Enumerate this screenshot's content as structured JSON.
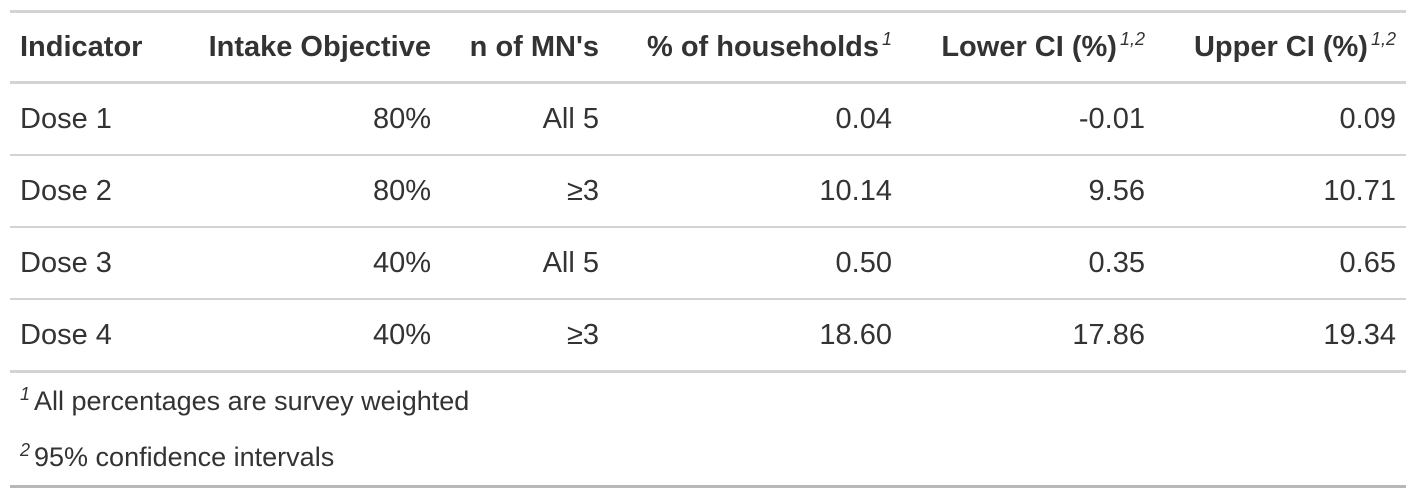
{
  "table": {
    "headers": [
      {
        "label": "Indicator",
        "marks": ""
      },
      {
        "label": "Intake Objective",
        "marks": ""
      },
      {
        "label": "n of MN's",
        "marks": ""
      },
      {
        "label": "% of households",
        "marks": "1"
      },
      {
        "label": "Lower CI (%)",
        "marks": "1,2"
      },
      {
        "label": "Upper CI (%)",
        "marks": "1,2"
      }
    ],
    "rows": [
      [
        "Dose 1",
        "80%",
        "All 5",
        "0.04",
        "-0.01",
        "0.09"
      ],
      [
        "Dose 2",
        "80%",
        "≥3",
        "10.14",
        "9.56",
        "10.71"
      ],
      [
        "Dose 3",
        "40%",
        "All 5",
        "0.50",
        "0.35",
        "0.65"
      ],
      [
        "Dose 4",
        "40%",
        "≥3",
        "18.60",
        "17.86",
        "19.34"
      ]
    ],
    "footnotes": [
      {
        "mark": "1",
        "text": "All percentages are survey weighted"
      },
      {
        "mark": "2",
        "text": "95% confidence intervals"
      }
    ]
  }
}
